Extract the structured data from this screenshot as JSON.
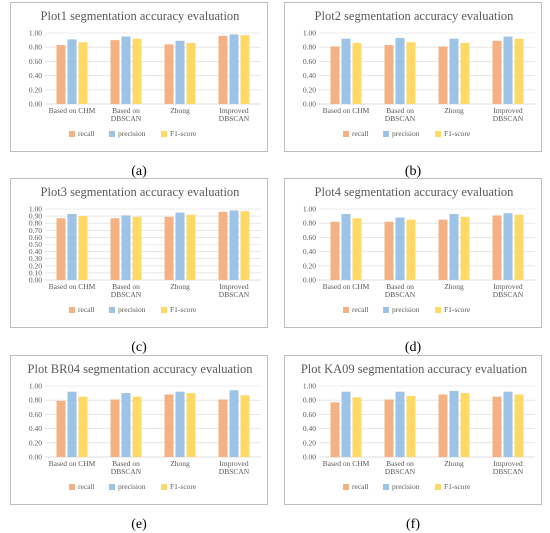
{
  "colors": {
    "recall": "#F4B183",
    "precision": "#9DC3E6",
    "f1": "#FFD966",
    "grid": "#d9d9d9",
    "axis": "#bfbfbf"
  },
  "chart_data": [
    {
      "type": "bar",
      "title": "Plot1 segmentation accuracy evaluation",
      "caption": "(a)",
      "categories": [
        "Based on CHM",
        "Based on DBSCAN",
        "Zhong",
        "Improved DBSCAN"
      ],
      "series": [
        {
          "name": "recall",
          "values": [
            0.83,
            0.9,
            0.84,
            0.96
          ]
        },
        {
          "name": "precision",
          "values": [
            0.91,
            0.95,
            0.89,
            0.98
          ]
        },
        {
          "name": "F1-score",
          "values": [
            0.87,
            0.92,
            0.86,
            0.97
          ]
        }
      ],
      "yticks": [
        "0.00",
        "0.20",
        "0.40",
        "0.60",
        "0.80",
        "1.00"
      ],
      "ylim": [
        0,
        1
      ],
      "grid": true,
      "legend": "bottom"
    },
    {
      "type": "bar",
      "title": "Plot2 segmentation accuracy evaluation",
      "caption": "(b)",
      "categories": [
        "Based on CHM",
        "Based on DBSCAN",
        "Zhong",
        "Improved DBSCAN"
      ],
      "series": [
        {
          "name": "recall",
          "values": [
            0.81,
            0.83,
            0.81,
            0.89
          ]
        },
        {
          "name": "precision",
          "values": [
            0.92,
            0.93,
            0.92,
            0.95
          ]
        },
        {
          "name": "F1-score",
          "values": [
            0.86,
            0.87,
            0.86,
            0.92
          ]
        }
      ],
      "yticks": [
        "0.00",
        "0.20",
        "0.40",
        "0.60",
        "0.80",
        "1.00"
      ],
      "ylim": [
        0,
        1
      ],
      "grid": true,
      "legend": "bottom"
    },
    {
      "type": "bar",
      "title": "Plot3 segmentation accuracy evaluation",
      "caption": "(c)",
      "categories": [
        "Based on CHM",
        "Based on DBSCAN",
        "Zhong",
        "Improved DBSCAN"
      ],
      "series": [
        {
          "name": "recall",
          "values": [
            0.87,
            0.87,
            0.89,
            0.96
          ]
        },
        {
          "name": "precision",
          "values": [
            0.93,
            0.91,
            0.95,
            0.98
          ]
        },
        {
          "name": "F1-score",
          "values": [
            0.9,
            0.89,
            0.92,
            0.97
          ]
        }
      ],
      "yticks": [
        "0.00",
        "0.10",
        "0.20",
        "0.30",
        "0.40",
        "0.50",
        "0.60",
        "0.70",
        "0.80",
        "0.90",
        "1.00"
      ],
      "ylim": [
        0,
        1
      ],
      "grid": true,
      "legend": "bottom"
    },
    {
      "type": "bar",
      "title": "Plot4 segmentation accuracy evaluation",
      "caption": "(d)",
      "categories": [
        "Based on CHM",
        "Based on DBSCAN",
        "Zhong",
        "Improved DBSCAN"
      ],
      "series": [
        {
          "name": "recall",
          "values": [
            0.82,
            0.82,
            0.85,
            0.91
          ]
        },
        {
          "name": "precision",
          "values": [
            0.93,
            0.88,
            0.93,
            0.94
          ]
        },
        {
          "name": "F1-score",
          "values": [
            0.87,
            0.85,
            0.89,
            0.92
          ]
        }
      ],
      "yticks": [
        "0.00",
        "0.20",
        "0.40",
        "0.60",
        "0.80",
        "1.00"
      ],
      "ylim": [
        0,
        1
      ],
      "grid": true,
      "legend": "bottom"
    },
    {
      "type": "bar",
      "title": "Plot BR04 segmentation accuracy evaluation",
      "caption": "(e)",
      "categories": [
        "Based on CHM",
        "Based on DBSCAN",
        "Zhong",
        "Improved DBSCAN"
      ],
      "series": [
        {
          "name": "recall",
          "values": [
            0.79,
            0.81,
            0.88,
            0.81
          ]
        },
        {
          "name": "precision",
          "values": [
            0.92,
            0.9,
            0.92,
            0.94
          ]
        },
        {
          "name": "F1-score",
          "values": [
            0.85,
            0.85,
            0.9,
            0.87
          ]
        }
      ],
      "yticks": [
        "0.00",
        "0.20",
        "0.40",
        "0.60",
        "0.80",
        "1.00"
      ],
      "ylim": [
        0,
        1
      ],
      "grid": true,
      "legend": "bottom"
    },
    {
      "type": "bar",
      "title": "Plot KA09 segmentation accuracy evaluation",
      "caption": "(f)",
      "categories": [
        "Based on CHM",
        "Based on DBSCAN",
        "Zhong",
        "Improved DBSCAN"
      ],
      "series": [
        {
          "name": "recall",
          "values": [
            0.77,
            0.81,
            0.88,
            0.85
          ]
        },
        {
          "name": "precision",
          "values": [
            0.92,
            0.92,
            0.93,
            0.92
          ]
        },
        {
          "name": "F1-score",
          "values": [
            0.84,
            0.86,
            0.9,
            0.88
          ]
        }
      ],
      "yticks": [
        "0.00",
        "0.20",
        "0.40",
        "0.60",
        "0.80",
        "1.00"
      ],
      "ylim": [
        0,
        1
      ],
      "grid": true,
      "legend": "bottom"
    }
  ]
}
